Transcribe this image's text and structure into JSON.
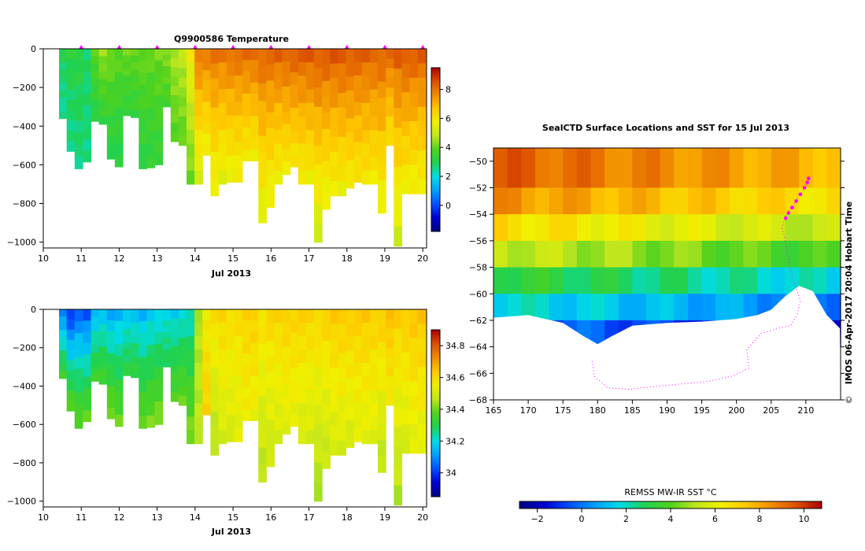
{
  "colors": {
    "scale": [
      "#000080",
      "#0000d0",
      "#0050ff",
      "#00a0ff",
      "#00dce6",
      "#20d250",
      "#50d21e",
      "#bee61e",
      "#f0f000",
      "#ffc800",
      "#f08c00",
      "#dc5000",
      "#aa0000"
    ],
    "marker": "#ff00ff"
  },
  "chart_data": [
    {
      "id": "temperature",
      "type": "heatmap",
      "title": "Q9900586  Temperature",
      "xlabel": "Jul 2013",
      "ylabel": "",
      "x_ticks": [
        "10",
        "11",
        "12",
        "13",
        "14",
        "15",
        "16",
        "17",
        "18",
        "19",
        "20"
      ],
      "y_ticks": [
        "0",
        "−200",
        "−400",
        "−600",
        "−800",
        "−1000"
      ],
      "xlim": [
        10,
        20.1
      ],
      "ylim": [
        -1030,
        0
      ],
      "colorbar": {
        "range": [
          -1.8,
          9.5
        ],
        "ticks": [
          "0",
          "2",
          "4",
          "6",
          "8"
        ]
      },
      "surface_times": [
        11,
        12,
        13,
        14,
        15,
        16,
        17,
        18,
        19,
        20
      ],
      "profiles": [
        {
          "t": 10.52,
          "depth": 360,
          "surface": 3.0,
          "bottom": 2.4
        },
        {
          "t": 10.72,
          "depth": 530,
          "surface": 3.2,
          "bottom": 2.5
        },
        {
          "t": 10.93,
          "depth": 620,
          "surface": 3.2,
          "bottom": 2.6
        },
        {
          "t": 11.15,
          "depth": 585,
          "surface": 2.8,
          "bottom": 2.6
        },
        {
          "t": 11.36,
          "depth": 375,
          "surface": 4.0,
          "bottom": 3.0
        },
        {
          "t": 11.57,
          "depth": 390,
          "surface": 4.6,
          "bottom": 3.2
        },
        {
          "t": 11.78,
          "depth": 570,
          "surface": 4.3,
          "bottom": 3.0
        },
        {
          "t": 11.99,
          "depth": 610,
          "surface": 4.0,
          "bottom": 3.0
        },
        {
          "t": 12.2,
          "depth": 345,
          "surface": 4.2,
          "bottom": 3.2
        },
        {
          "t": 12.41,
          "depth": 355,
          "surface": 4.1,
          "bottom": 3.3
        },
        {
          "t": 12.62,
          "depth": 620,
          "surface": 4.2,
          "bottom": 3.1
        },
        {
          "t": 12.83,
          "depth": 615,
          "surface": 4.1,
          "bottom": 3.2
        },
        {
          "t": 13.04,
          "depth": 600,
          "surface": 4.2,
          "bottom": 3.3
        },
        {
          "t": 13.25,
          "depth": 300,
          "surface": 4.4,
          "bottom": 3.6
        },
        {
          "t": 13.46,
          "depth": 480,
          "surface": 4.8,
          "bottom": 3.8
        },
        {
          "t": 13.67,
          "depth": 500,
          "surface": 5.0,
          "bottom": 3.9
        },
        {
          "t": 13.88,
          "depth": 700,
          "surface": 6.0,
          "bottom": 4.0
        },
        {
          "t": 14.09,
          "depth": 700,
          "surface": 8.2,
          "bottom": 5.2
        },
        {
          "t": 14.3,
          "depth": 550,
          "surface": 8.1,
          "bottom": 5.6
        },
        {
          "t": 14.51,
          "depth": 760,
          "surface": 8.2,
          "bottom": 5.5
        },
        {
          "t": 14.72,
          "depth": 700,
          "surface": 8.2,
          "bottom": 5.4
        },
        {
          "t": 14.93,
          "depth": 690,
          "surface": 8.3,
          "bottom": 5.5
        },
        {
          "t": 15.14,
          "depth": 690,
          "surface": 8.3,
          "bottom": 5.6
        },
        {
          "t": 15.35,
          "depth": 580,
          "surface": 8.3,
          "bottom": 5.8
        },
        {
          "t": 15.56,
          "depth": 580,
          "surface": 8.4,
          "bottom": 5.7
        },
        {
          "t": 15.77,
          "depth": 900,
          "surface": 8.5,
          "bottom": 5.3
        },
        {
          "t": 15.98,
          "depth": 820,
          "surface": 8.4,
          "bottom": 5.5
        },
        {
          "t": 16.19,
          "depth": 700,
          "surface": 8.5,
          "bottom": 5.6
        },
        {
          "t": 16.4,
          "depth": 650,
          "surface": 8.5,
          "bottom": 5.8
        },
        {
          "t": 16.61,
          "depth": 610,
          "surface": 8.6,
          "bottom": 5.9
        },
        {
          "t": 16.82,
          "depth": 700,
          "surface": 8.6,
          "bottom": 5.7
        },
        {
          "t": 17.03,
          "depth": 700,
          "surface": 8.7,
          "bottom": 5.6
        },
        {
          "t": 17.24,
          "depth": 1000,
          "surface": 8.7,
          "bottom": 5.0
        },
        {
          "t": 17.45,
          "depth": 830,
          "surface": 8.7,
          "bottom": 5.4
        },
        {
          "t": 17.66,
          "depth": 760,
          "surface": 8.7,
          "bottom": 5.6
        },
        {
          "t": 17.87,
          "depth": 760,
          "surface": 8.7,
          "bottom": 5.6
        },
        {
          "t": 18.08,
          "depth": 720,
          "surface": 8.6,
          "bottom": 5.8
        },
        {
          "t": 18.29,
          "depth": 690,
          "surface": 8.6,
          "bottom": 5.9
        },
        {
          "t": 18.5,
          "depth": 700,
          "surface": 8.5,
          "bottom": 5.9
        },
        {
          "t": 18.71,
          "depth": 700,
          "surface": 8.5,
          "bottom": 5.8
        },
        {
          "t": 18.92,
          "depth": 850,
          "surface": 8.5,
          "bottom": 5.5
        },
        {
          "t": 19.13,
          "depth": 500,
          "surface": 8.4,
          "bottom": 6.0
        },
        {
          "t": 19.34,
          "depth": 1020,
          "surface": 8.6,
          "bottom": 5.0
        },
        {
          "t": 19.55,
          "depth": 750,
          "surface": 8.7,
          "bottom": 5.6
        },
        {
          "t": 19.76,
          "depth": 750,
          "surface": 8.6,
          "bottom": 5.6
        },
        {
          "t": 19.97,
          "depth": 750,
          "surface": 8.6,
          "bottom": 5.6
        }
      ]
    },
    {
      "id": "salinity",
      "type": "heatmap",
      "title": "",
      "xlabel": "Jul 2013",
      "ylabel": "",
      "x_ticks": [
        "10",
        "11",
        "12",
        "13",
        "14",
        "15",
        "16",
        "17",
        "18",
        "19",
        "20"
      ],
      "y_ticks": [
        "0",
        "−200",
        "−400",
        "−600",
        "−800",
        "−1000"
      ],
      "xlim": [
        10,
        20.1
      ],
      "ylim": [
        -1030,
        0
      ],
      "colorbar": {
        "range": [
          33.85,
          34.9
        ],
        "ticks": [
          "34",
          "34.2",
          "34.4",
          "34.6",
          "34.8"
        ]
      },
      "profiles": [
        {
          "t": 10.52,
          "depth": 360,
          "surface": 34.05,
          "bottom": 34.35
        },
        {
          "t": 10.72,
          "depth": 530,
          "surface": 33.95,
          "bottom": 34.4
        },
        {
          "t": 10.93,
          "depth": 620,
          "surface": 34.02,
          "bottom": 34.4
        },
        {
          "t": 11.15,
          "depth": 585,
          "surface": 34.0,
          "bottom": 34.4
        },
        {
          "t": 11.36,
          "depth": 375,
          "surface": 34.12,
          "bottom": 34.35
        },
        {
          "t": 11.57,
          "depth": 390,
          "surface": 34.14,
          "bottom": 34.36
        },
        {
          "t": 11.78,
          "depth": 570,
          "surface": 34.1,
          "bottom": 34.42
        },
        {
          "t": 11.99,
          "depth": 610,
          "surface": 34.12,
          "bottom": 34.4
        },
        {
          "t": 12.2,
          "depth": 345,
          "surface": 34.15,
          "bottom": 34.32
        },
        {
          "t": 12.41,
          "depth": 355,
          "surface": 34.14,
          "bottom": 34.33
        },
        {
          "t": 12.62,
          "depth": 620,
          "surface": 34.12,
          "bottom": 34.4
        },
        {
          "t": 12.83,
          "depth": 615,
          "surface": 34.15,
          "bottom": 34.41
        },
        {
          "t": 13.04,
          "depth": 600,
          "surface": 34.16,
          "bottom": 34.42
        },
        {
          "t": 13.25,
          "depth": 300,
          "surface": 34.18,
          "bottom": 34.3
        },
        {
          "t": 13.46,
          "depth": 480,
          "surface": 34.16,
          "bottom": 34.38
        },
        {
          "t": 13.67,
          "depth": 500,
          "surface": 34.18,
          "bottom": 34.4
        },
        {
          "t": 13.88,
          "depth": 700,
          "surface": 34.2,
          "bottom": 34.42
        },
        {
          "t": 14.09,
          "depth": 700,
          "surface": 34.45,
          "bottom": 34.47
        },
        {
          "t": 14.3,
          "depth": 550,
          "surface": 34.55,
          "bottom": 34.62
        },
        {
          "t": 14.51,
          "depth": 760,
          "surface": 34.6,
          "bottom": 34.45
        },
        {
          "t": 14.72,
          "depth": 700,
          "surface": 34.62,
          "bottom": 34.5
        },
        {
          "t": 14.93,
          "depth": 690,
          "surface": 34.6,
          "bottom": 34.5
        },
        {
          "t": 15.14,
          "depth": 690,
          "surface": 34.6,
          "bottom": 34.52
        },
        {
          "t": 15.35,
          "depth": 580,
          "surface": 34.62,
          "bottom": 34.55
        },
        {
          "t": 15.56,
          "depth": 580,
          "surface": 34.63,
          "bottom": 34.54
        },
        {
          "t": 15.77,
          "depth": 900,
          "surface": 34.6,
          "bottom": 34.46
        },
        {
          "t": 15.98,
          "depth": 820,
          "surface": 34.62,
          "bottom": 34.48
        },
        {
          "t": 16.19,
          "depth": 700,
          "surface": 34.62,
          "bottom": 34.5
        },
        {
          "t": 16.4,
          "depth": 650,
          "surface": 34.63,
          "bottom": 34.52
        },
        {
          "t": 16.61,
          "depth": 610,
          "surface": 34.62,
          "bottom": 34.53
        },
        {
          "t": 16.82,
          "depth": 700,
          "surface": 34.63,
          "bottom": 34.5
        },
        {
          "t": 17.03,
          "depth": 700,
          "surface": 34.62,
          "bottom": 34.5
        },
        {
          "t": 17.24,
          "depth": 1000,
          "surface": 34.62,
          "bottom": 34.44
        },
        {
          "t": 17.45,
          "depth": 830,
          "surface": 34.63,
          "bottom": 34.47
        },
        {
          "t": 17.66,
          "depth": 760,
          "surface": 34.64,
          "bottom": 34.5
        },
        {
          "t": 17.87,
          "depth": 760,
          "surface": 34.64,
          "bottom": 34.5
        },
        {
          "t": 18.08,
          "depth": 720,
          "surface": 34.64,
          "bottom": 34.5
        },
        {
          "t": 18.29,
          "depth": 690,
          "surface": 34.64,
          "bottom": 34.52
        },
        {
          "t": 18.5,
          "depth": 700,
          "surface": 34.64,
          "bottom": 34.52
        },
        {
          "t": 18.71,
          "depth": 700,
          "surface": 34.63,
          "bottom": 34.52
        },
        {
          "t": 18.92,
          "depth": 850,
          "surface": 34.64,
          "bottom": 34.46
        },
        {
          "t": 19.13,
          "depth": 500,
          "surface": 34.66,
          "bottom": 34.56
        },
        {
          "t": 19.34,
          "depth": 1020,
          "surface": 34.64,
          "bottom": 34.45
        },
        {
          "t": 19.55,
          "depth": 750,
          "surface": 34.64,
          "bottom": 34.5
        },
        {
          "t": 19.76,
          "depth": 750,
          "surface": 34.65,
          "bottom": 34.52
        },
        {
          "t": 19.97,
          "depth": 750,
          "surface": 34.65,
          "bottom": 34.52
        }
      ]
    },
    {
      "id": "sst_map",
      "type": "heatmap",
      "title": "SealCTD Surface Locations and SST for 15 Jul 2013",
      "x_ticks": [
        "165",
        "170",
        "175",
        "180",
        "185",
        "190",
        "195",
        "200",
        "205",
        "210"
      ],
      "y_ticks": [
        "−50",
        "−52",
        "−54",
        "−56",
        "−58",
        "−60",
        "−62",
        "−64",
        "−66",
        "−68"
      ],
      "xlim": [
        165,
        215
      ],
      "ylim": [
        -68,
        -49
      ],
      "colorbar_label": "REMSS MW-IR SST °C",
      "colorbar": {
        "range": [
          -2.8,
          10.8
        ],
        "ticks": [
          "−2",
          "0",
          "2",
          "4",
          "6",
          "8",
          "10"
        ]
      },
      "sst_bands": [
        {
          "lat_north": -49,
          "lat_south": -52,
          "sst": 8.5
        },
        {
          "lat_north": -52,
          "lat_south": -54,
          "sst": 7.5
        },
        {
          "lat_north": -54,
          "lat_south": -56,
          "sst": 6.0
        },
        {
          "lat_north": -56,
          "lat_south": -58,
          "sst": 4.5
        },
        {
          "lat_north": -58,
          "lat_south": -60,
          "sst": 2.5
        },
        {
          "lat_north": -60,
          "lat_south": -62,
          "sst": 1.0
        },
        {
          "lat_north": -62,
          "lat_south": -64,
          "sst": -0.8
        }
      ],
      "ice_edge": [
        [
          165,
          -61.8
        ],
        [
          170,
          -61.6
        ],
        [
          175,
          -62.2
        ],
        [
          178,
          -63.2
        ],
        [
          180,
          -63.8
        ],
        [
          182,
          -63.2
        ],
        [
          185,
          -62.4
        ],
        [
          190,
          -62.2
        ],
        [
          195,
          -62.1
        ],
        [
          200,
          -61.9
        ],
        [
          203,
          -61.6
        ],
        [
          205,
          -61.2
        ],
        [
          207,
          -60.2
        ],
        [
          209,
          -59.4
        ],
        [
          211,
          -59.8
        ],
        [
          213,
          -61.6
        ],
        [
          214.9,
          -62.6
        ]
      ],
      "seal_track": [
        [
          210.4,
          -51.3
        ],
        [
          210.2,
          -51.6
        ],
        [
          209.6,
          -52.2
        ],
        [
          208.9,
          -52.7
        ],
        [
          208.2,
          -53.3
        ],
        [
          207.6,
          -53.7
        ],
        [
          207.0,
          -54.2
        ],
        [
          206.6,
          -55.0
        ],
        [
          207.2,
          -56.5
        ],
        [
          207.8,
          -58.2
        ],
        [
          208.6,
          -59.6
        ],
        [
          209.2,
          -60.5
        ],
        [
          208.8,
          -61.5
        ],
        [
          207.8,
          -62.4
        ],
        [
          206.0,
          -62.6
        ],
        [
          203.5,
          -63.0
        ],
        [
          201.5,
          -64.2
        ],
        [
          201.8,
          -65.6
        ],
        [
          199.5,
          -66.2
        ],
        [
          196.0,
          -66.6
        ],
        [
          192.0,
          -66.8
        ],
        [
          188.0,
          -67.0
        ],
        [
          184.5,
          -67.2
        ],
        [
          181.5,
          -67.1
        ],
        [
          179.5,
          -66.2
        ],
        [
          179.2,
          -65.0
        ]
      ],
      "surface_locations": [
        [
          210.4,
          -51.3
        ],
        [
          210.2,
          -51.6
        ],
        [
          209.8,
          -52.0
        ],
        [
          209.2,
          -52.5
        ],
        [
          208.6,
          -53.0
        ],
        [
          208.0,
          -53.5
        ],
        [
          207.5,
          -53.9
        ],
        [
          207.1,
          -54.3
        ]
      ],
      "side_text": "IMOS 06-Apr-2017 20:04 Hobart Time"
    }
  ]
}
